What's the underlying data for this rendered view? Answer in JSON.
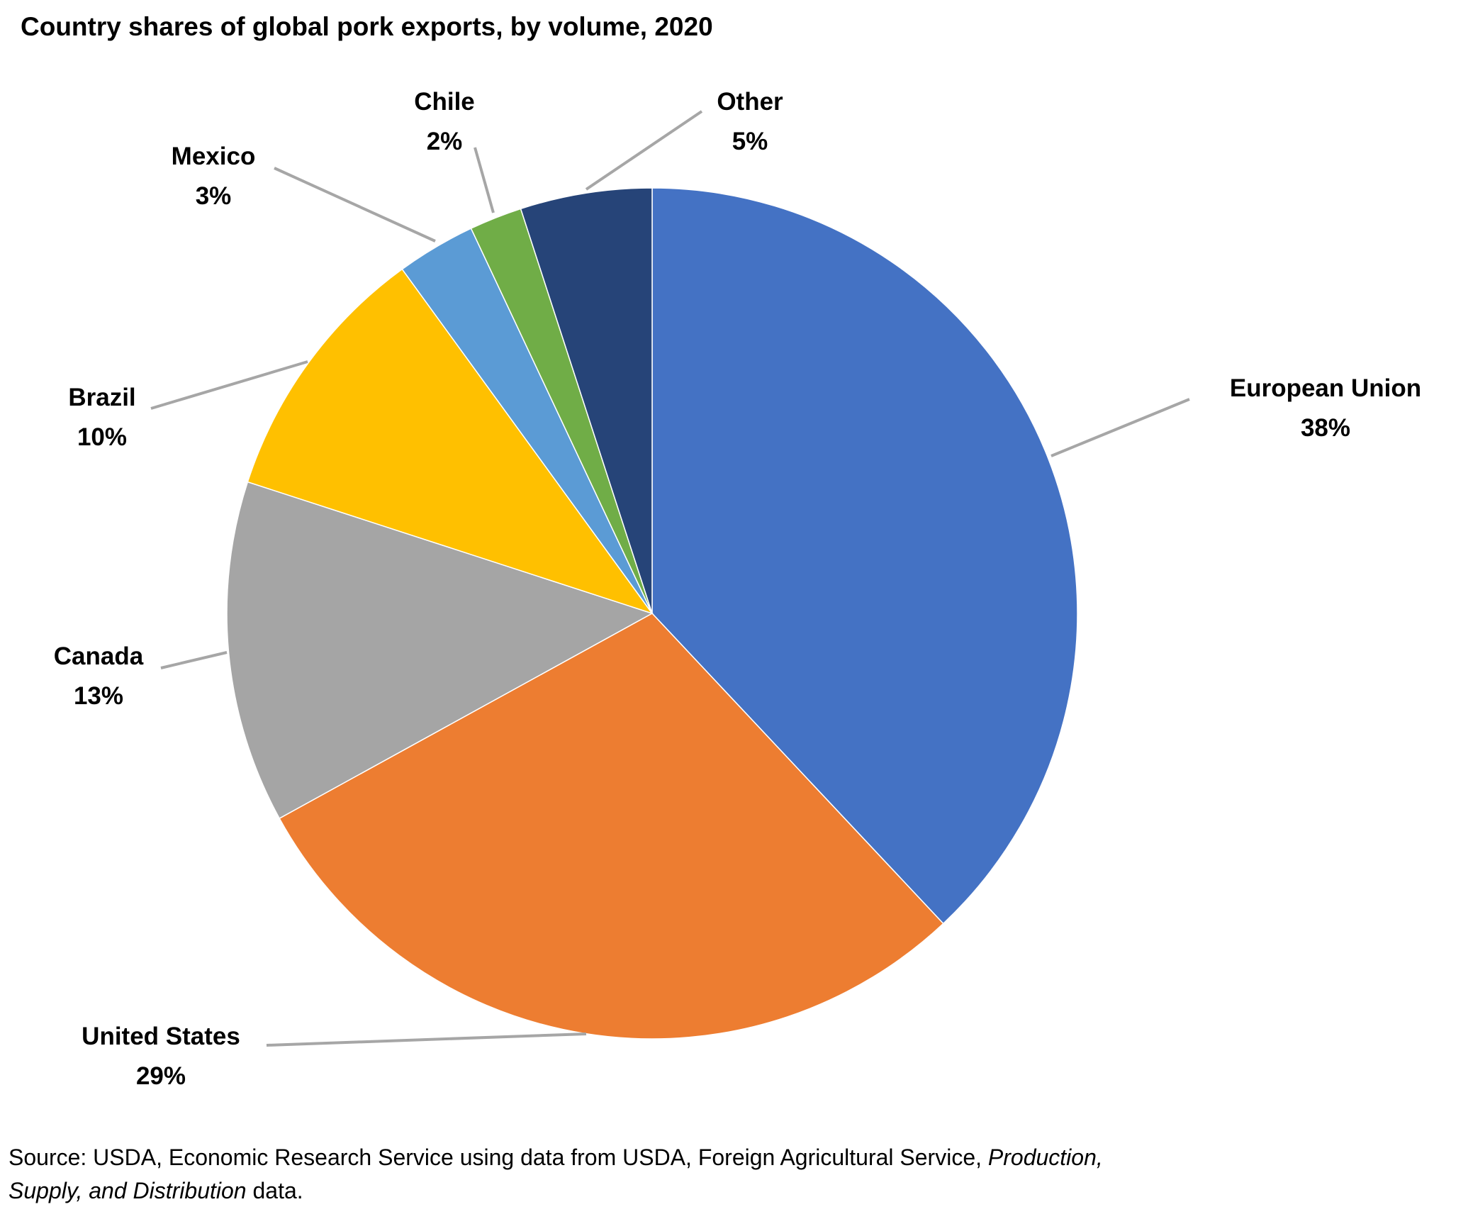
{
  "chart_data": {
    "type": "pie",
    "title": "Country shares of global pork exports, by volume, 2020",
    "categories": [
      "European Union",
      "United States",
      "Canada",
      "Brazil",
      "Mexico",
      "Chile",
      "Other"
    ],
    "values": [
      38,
      29,
      13,
      10,
      3,
      2,
      5
    ],
    "value_labels": [
      "38%",
      "29%",
      "13%",
      "10%",
      "3%",
      "2%",
      "5%"
    ],
    "colors": [
      "#4472c4",
      "#ed7d31",
      "#a5a5a5",
      "#ffc000",
      "#5b9bd5",
      "#70ad47",
      "#264478"
    ],
    "source": [
      "Source: USDA, Economic Research Service using data from USDA, Foreign Agricultural Service, ",
      "Production,",
      "Supply, and Distribution",
      " data."
    ]
  }
}
